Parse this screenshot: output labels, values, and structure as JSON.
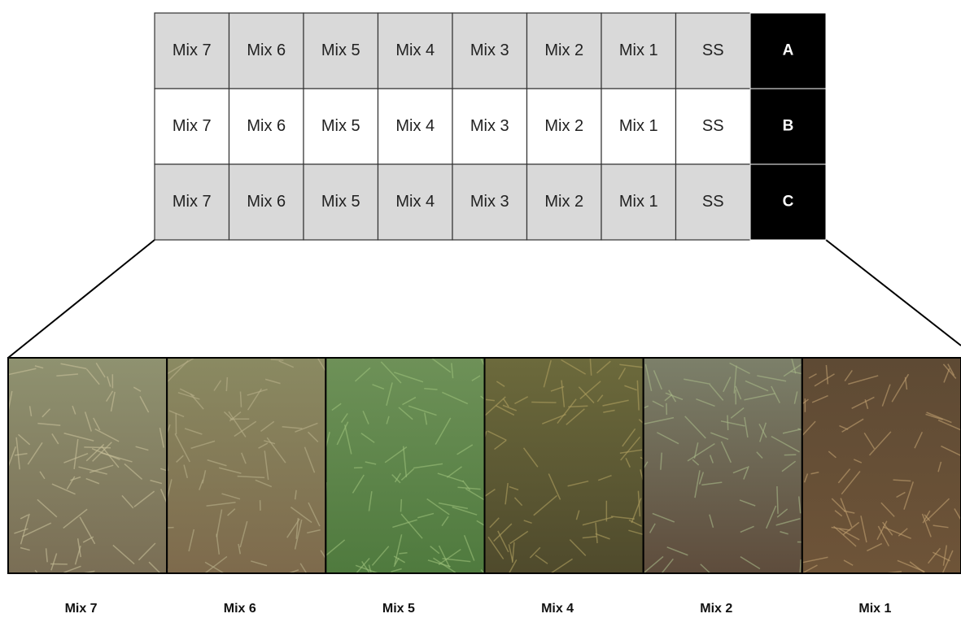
{
  "grid": {
    "rows": [
      {
        "cells": [
          "Mix 7",
          "Mix 6",
          "Mix 5",
          "Mix 4",
          "Mix 3",
          "Mix 2",
          "Mix 1",
          "SS"
        ],
        "label": "A"
      },
      {
        "cells": [
          "Mix 7",
          "Mix 6",
          "Mix 5",
          "Mix 4",
          "Mix 3",
          "Mix 2",
          "Mix 1",
          "SS"
        ],
        "label": "B"
      },
      {
        "cells": [
          "Mix 7",
          "Mix 6",
          "Mix 5",
          "Mix 4",
          "Mix 3",
          "Mix 2",
          "Mix 1",
          "SS"
        ],
        "label": "C"
      }
    ]
  },
  "photos": {
    "captions": [
      "Mix 7",
      "Mix 6",
      "Mix 5",
      "Mix 4",
      "Mix 2",
      "Mix 1"
    ]
  }
}
